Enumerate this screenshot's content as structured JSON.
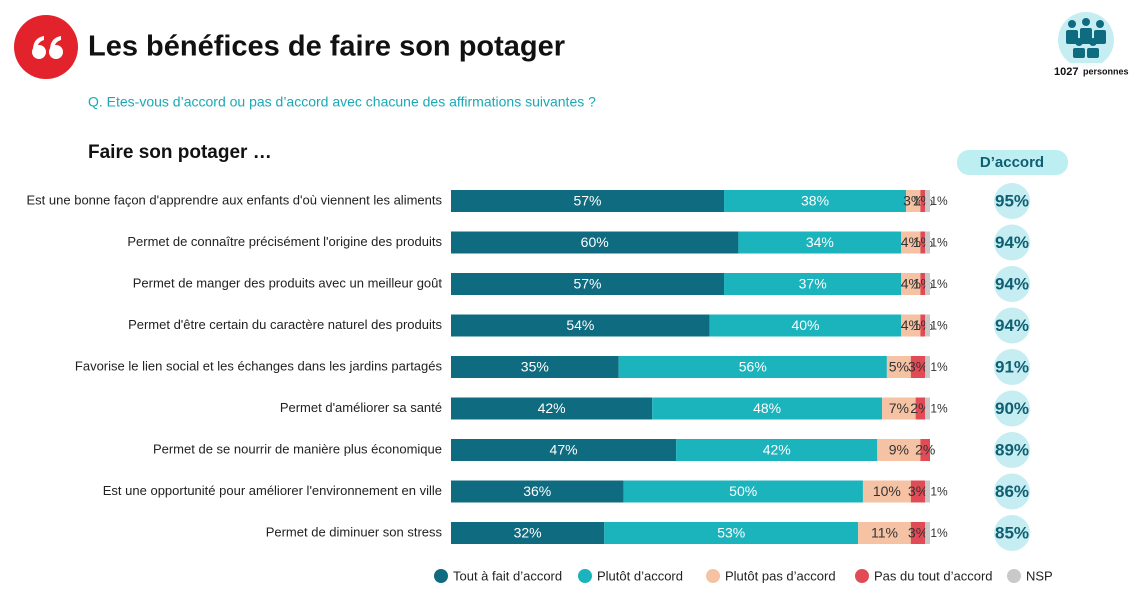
{
  "chart_data": {
    "type": "stacked-bar-horizontal",
    "title": "Les bénéfices de faire son potager",
    "question": "Q. Etes-vous d’accord ou pas d’accord avec chacune des affirmations suivantes ?",
    "subtitle": "Faire son potager …",
    "sample": {
      "count": "1027",
      "label": "personnes"
    },
    "categories": [
      "Est une bonne façon d'apprendre aux enfants d'où viennent les aliments",
      "Permet de connaître précisément l'origine des produits",
      "Permet de manger des produits avec un meilleur goût",
      "Permet d'être certain du caractère naturel des produits",
      "Favorise le lien social et les échanges dans les jardins partagés",
      "Permet d'améliorer sa santé",
      "Permet de se nourrir de manière plus économique",
      "Est une opportunité pour améliorer l'environnement en ville",
      "Permet de diminuer son stress"
    ],
    "xlim": [
      0,
      100
    ],
    "series": [
      {
        "name": "Tout à fait d’accord",
        "color": "#0f6b80",
        "values": [
          57,
          60,
          57,
          54,
          35,
          42,
          47,
          36,
          32
        ],
        "value_labels": [
          "57%",
          "60%",
          "57%",
          "54%",
          "35%",
          "42%",
          "47%",
          "36%",
          "32%"
        ]
      },
      {
        "name": "Plutôt d’accord",
        "color": "#1bb3bc",
        "values": [
          38,
          34,
          37,
          40,
          56,
          48,
          42,
          50,
          53
        ],
        "value_labels": [
          "38%",
          "34%",
          "37%",
          "40%",
          "56%",
          "48%",
          "42%",
          "50%",
          "53%"
        ]
      },
      {
        "name": "Plutôt pas d’accord",
        "color": "#f6c2a4",
        "values": [
          3,
          4,
          4,
          4,
          5,
          7,
          9,
          10,
          11
        ],
        "value_labels": [
          "3%",
          "4%",
          "4%",
          "4%",
          "5%",
          "7%",
          "9%",
          "10%",
          "11%"
        ]
      },
      {
        "name": "Pas du tout d’accord",
        "color": "#e14b55",
        "values": [
          1,
          1,
          1,
          1,
          3,
          2,
          2,
          3,
          3
        ],
        "value_labels": [
          "1%",
          "1%",
          "1%",
          "1%",
          "3%",
          "2%",
          "2%",
          "3%",
          "3%"
        ]
      },
      {
        "name": "NSP",
        "color": "#c9c9c9",
        "values": [
          1,
          1,
          1,
          1,
          1,
          1,
          null,
          1,
          1
        ],
        "value_labels": [
          "1%",
          "1%",
          "1%",
          "1%",
          "1%",
          "1%",
          null,
          "1%",
          "1%"
        ]
      }
    ],
    "totals": {
      "title": "D’accord",
      "values": [
        95,
        94,
        94,
        94,
        91,
        90,
        89,
        86,
        85
      ],
      "value_labels": [
        "95%",
        "94%",
        "94%",
        "94%",
        "91%",
        "90%",
        "89%",
        "86%",
        "85%"
      ]
    }
  }
}
